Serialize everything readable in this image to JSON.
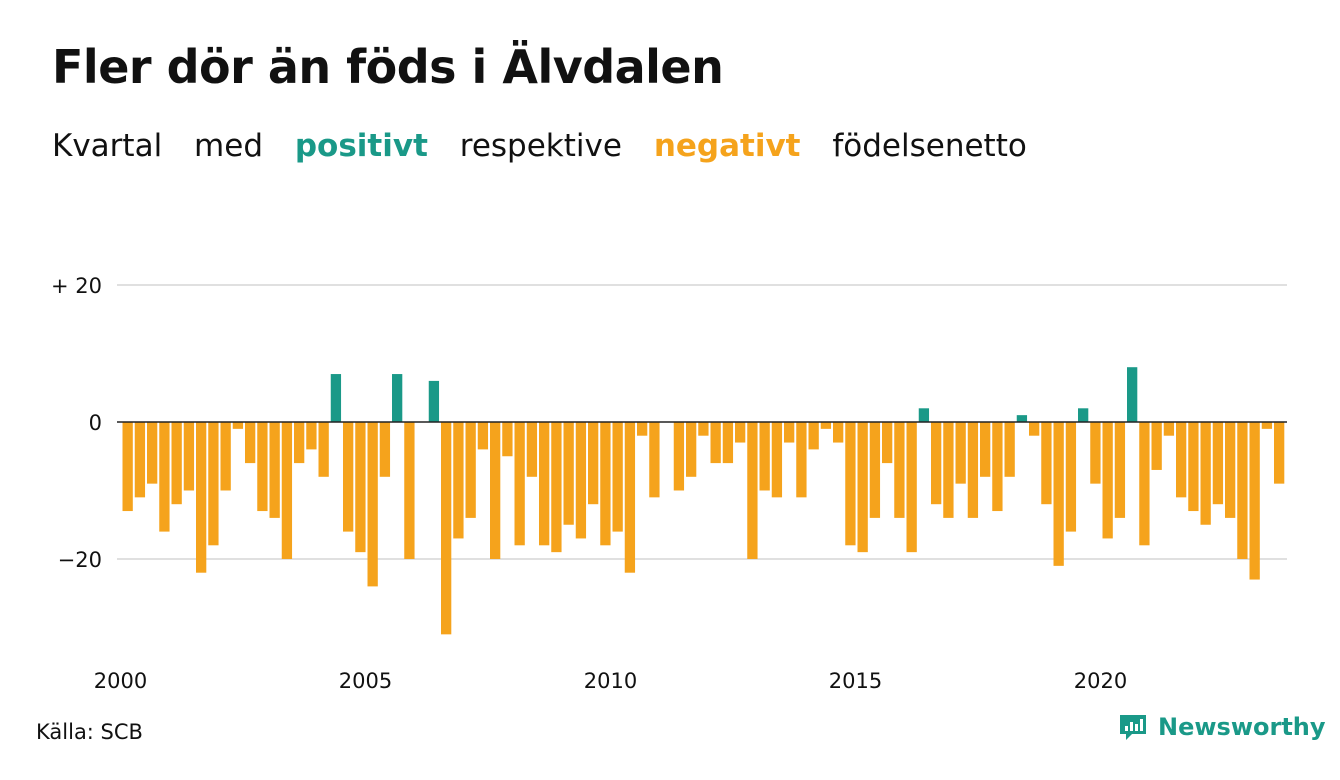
{
  "title": "Fler dör än föds i Älvdalen",
  "subtitle": {
    "w1": "Kvartal",
    "w2": "med",
    "positive": "positivt",
    "w3": "respektive",
    "negative": "negativt",
    "w4": "födelsenetto"
  },
  "source": "Källa: SCB",
  "brand": "Newsworthy",
  "colors": {
    "positive": "#1a9988",
    "negative": "#f5a31c",
    "grid": "#d6d6d6",
    "text": "#111111"
  },
  "chart_data": {
    "type": "bar",
    "xlabel": "",
    "ylabel": "",
    "ylim": [
      -31,
      20
    ],
    "yticks": [
      {
        "value": 20,
        "label": "+ 20"
      },
      {
        "value": 0,
        "label": "0"
      },
      {
        "value": -20,
        "label": "−20"
      }
    ],
    "xticks": [
      "2000",
      "2005",
      "2010",
      "2015",
      "2020"
    ],
    "period": "quarterly",
    "start": "2000 Q1",
    "values": [
      -13,
      -11,
      -9,
      -16,
      -12,
      -10,
      -22,
      -18,
      -10,
      -1,
      -6,
      -13,
      -14,
      -20,
      -6,
      -4,
      -8,
      7,
      -16,
      -19,
      -24,
      -8,
      7,
      -20,
      0,
      6,
      -31,
      -17,
      -14,
      -4,
      -20,
      -5,
      -18,
      -8,
      -18,
      -19,
      -15,
      -17,
      -12,
      -18,
      -16,
      -22,
      -2,
      -11,
      0,
      -10,
      -8,
      -2,
      -6,
      -6,
      -3,
      -20,
      -10,
      -11,
      -3,
      -11,
      -4,
      -1,
      -3,
      -18,
      -19,
      -14,
      -6,
      -14,
      -19,
      2,
      -12,
      -14,
      -9,
      -14,
      -8,
      -13,
      -8,
      1,
      -2,
      -12,
      -21,
      -16,
      2,
      -9,
      -17,
      -14,
      8,
      -18,
      -7,
      -2,
      -11,
      -13,
      -15,
      -12,
      -14,
      -20,
      -23,
      -1,
      -9
    ],
    "legend": "none",
    "grid": true
  }
}
